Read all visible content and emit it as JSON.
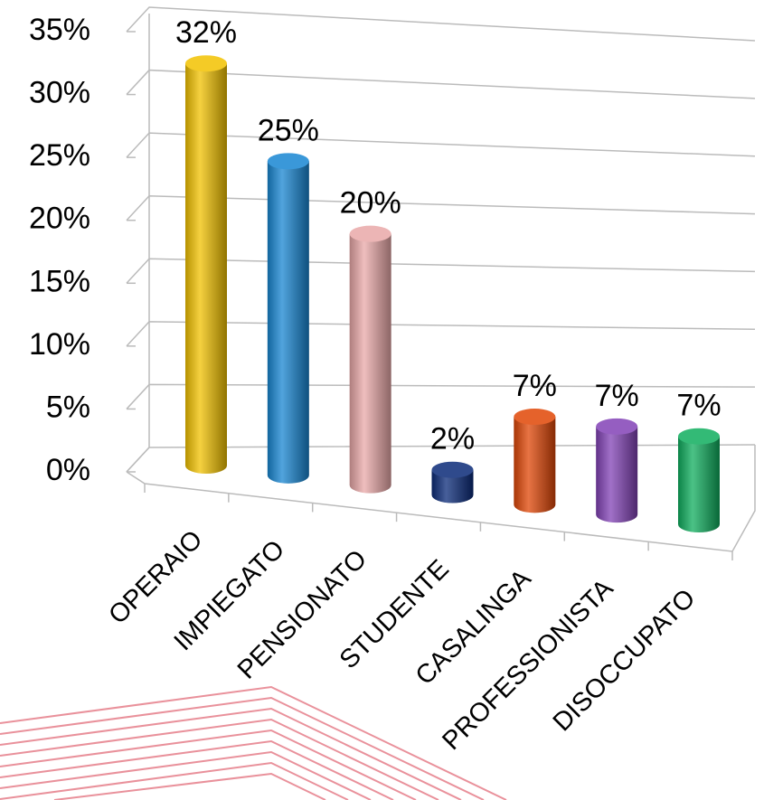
{
  "chart_data": {
    "type": "bar",
    "categories": [
      "OPERAIO",
      "IMPIEGATO",
      "PENSIONATO",
      "STUDENTE",
      "CASALINGA",
      "PROFESSIONISTA",
      "DISOCCUPATO"
    ],
    "values": [
      32,
      25,
      20,
      2,
      7,
      7,
      7
    ],
    "value_labels": [
      "32%",
      "25%",
      "20%",
      "2%",
      "7%",
      "7%",
      "7%"
    ],
    "colors": [
      "#f2c200",
      "#1786d2",
      "#e9a8a8",
      "#0a2a78",
      "#e04606",
      "#8242b6",
      "#0fae5e"
    ],
    "ylim": [
      0,
      35
    ],
    "yticks": [
      {
        "value": 0,
        "label": "0%"
      },
      {
        "value": 5,
        "label": "5%"
      },
      {
        "value": 10,
        "label": "10%"
      },
      {
        "value": 15,
        "label": "15%"
      },
      {
        "value": 20,
        "label": "20%"
      },
      {
        "value": 25,
        "label": "25%"
      },
      {
        "value": 30,
        "label": "30%"
      },
      {
        "value": 35,
        "label": "35%"
      }
    ],
    "grid": true
  }
}
